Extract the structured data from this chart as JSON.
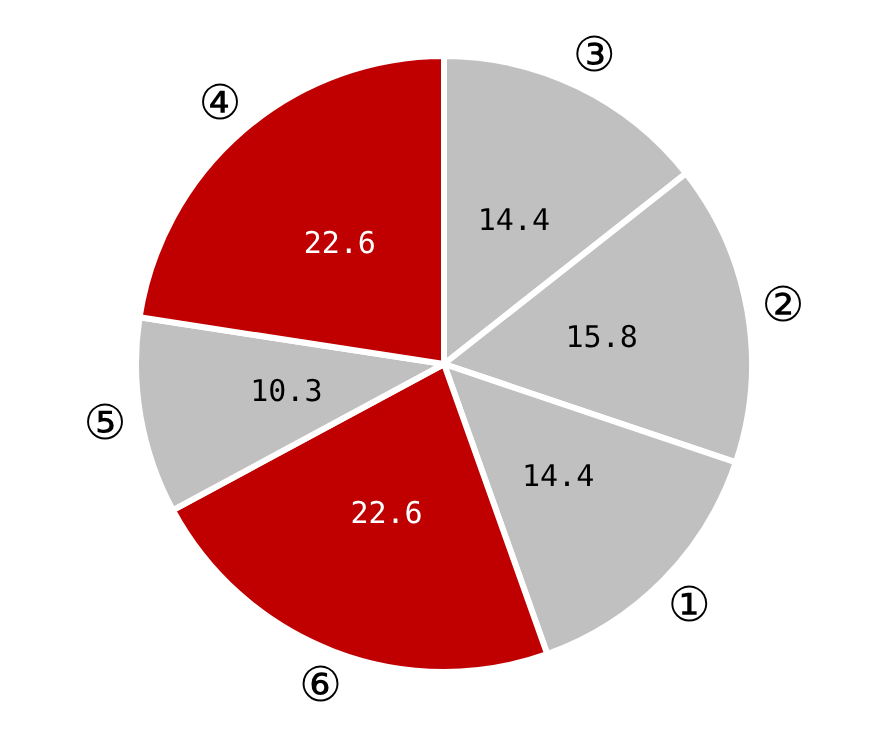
{
  "chart_data": {
    "type": "pie",
    "categories": [
      "③",
      "②",
      "①",
      "⑥",
      "⑤",
      "④"
    ],
    "values": [
      14.4,
      15.8,
      14.4,
      22.6,
      10.3,
      22.6
    ],
    "colors": [
      "#c0c0c0",
      "#c0c0c0",
      "#c0c0c0",
      "#c00000",
      "#c0c0c0",
      "#c00000"
    ],
    "data_labels": true
  }
}
